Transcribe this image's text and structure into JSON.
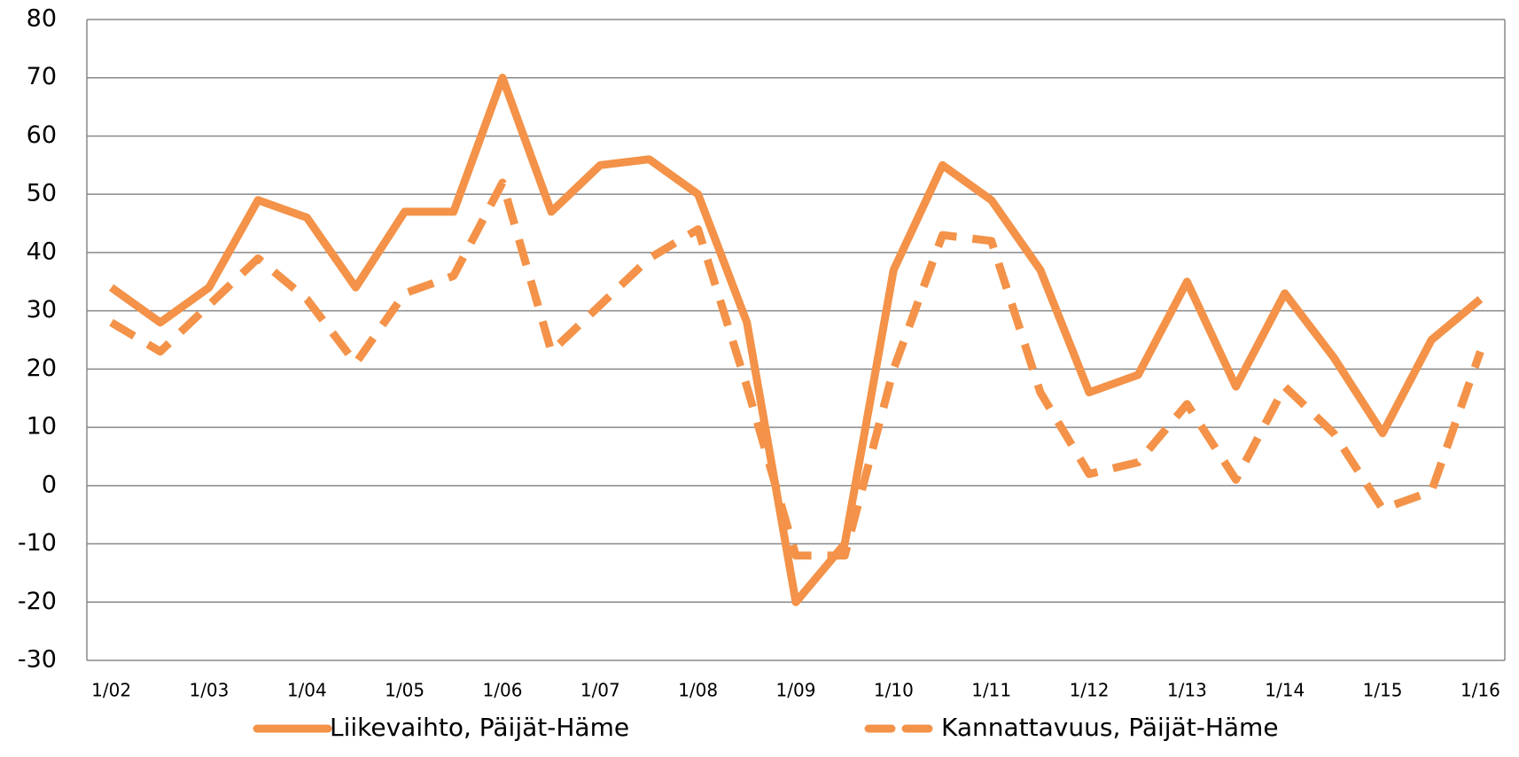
{
  "chart_data": {
    "type": "line",
    "categories": [
      "1/02",
      null,
      "1/03",
      null,
      "1/04",
      null,
      "1/05",
      null,
      "1/06",
      null,
      "1/07",
      null,
      "1/08",
      null,
      "1/09",
      null,
      "1/10",
      null,
      "1/11",
      null,
      "1/12",
      null,
      "1/13",
      null,
      "1/14",
      null,
      "1/15",
      null,
      "1/16"
    ],
    "series": [
      {
        "name": "Liikevaihto, Päijät-Häme",
        "color": "#f39248",
        "style": "solid",
        "values": [
          34,
          28,
          34,
          49,
          46,
          34,
          47,
          47,
          70,
          47,
          55,
          56,
          50,
          28,
          -20,
          -10,
          37,
          55,
          49,
          37,
          16,
          19,
          35,
          17,
          33,
          22,
          9,
          25,
          32
        ]
      },
      {
        "name": "Kannattavuus, Päijät-Häme",
        "color": "#f39248",
        "style": "dashed",
        "values": [
          28,
          23,
          31,
          39,
          32,
          21,
          33,
          36,
          52,
          23,
          31,
          39,
          44,
          17,
          -12,
          -12,
          20,
          43,
          42,
          16,
          2,
          4,
          14,
          1,
          17,
          9,
          -4,
          -1,
          23
        ]
      }
    ],
    "ylim": [
      -30,
      80
    ],
    "yticks": [
      -30,
      -20,
      -10,
      0,
      10,
      20,
      30,
      40,
      50,
      60,
      70,
      80
    ],
    "grid": true,
    "legend": "bottom"
  }
}
